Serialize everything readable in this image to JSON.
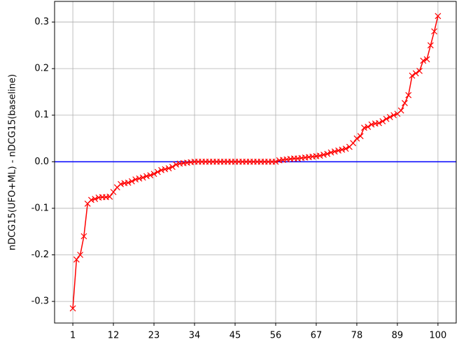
{
  "chart_data": {
    "type": "line",
    "y_label": "nDCG15(UFO+ML) - nDCG15(baseline)",
    "x": [
      1,
      2,
      3,
      4,
      5,
      6,
      7,
      8,
      9,
      10,
      11,
      12,
      13,
      14,
      15,
      16,
      17,
      18,
      19,
      20,
      21,
      22,
      23,
      24,
      25,
      26,
      27,
      28,
      29,
      30,
      31,
      32,
      33,
      34,
      35,
      36,
      37,
      38,
      39,
      40,
      41,
      42,
      43,
      44,
      45,
      46,
      47,
      48,
      49,
      50,
      51,
      52,
      53,
      54,
      55,
      56,
      57,
      58,
      59,
      60,
      61,
      62,
      63,
      64,
      65,
      66,
      67,
      68,
      69,
      70,
      71,
      72,
      73,
      74,
      75,
      76,
      77,
      78,
      79,
      80,
      81,
      82,
      83,
      84,
      85,
      86,
      87,
      88,
      89,
      90,
      91,
      92,
      93,
      94,
      95,
      96,
      97,
      98,
      99,
      100
    ],
    "series": [
      {
        "color": "#ff0000",
        "marker": "x",
        "values": [
          -0.315,
          -0.21,
          -0.2,
          -0.16,
          -0.09,
          -0.082,
          -0.08,
          -0.077,
          -0.076,
          -0.076,
          -0.075,
          -0.065,
          -0.055,
          -0.048,
          -0.046,
          -0.045,
          -0.042,
          -0.038,
          -0.036,
          -0.034,
          -0.031,
          -0.029,
          -0.026,
          -0.022,
          -0.018,
          -0.016,
          -0.014,
          -0.011,
          -0.006,
          -0.004,
          -0.003,
          -0.002,
          -0.001,
          0,
          0,
          0,
          0,
          0,
          0,
          0,
          0,
          0,
          0,
          0,
          0,
          0,
          0,
          0,
          0,
          0,
          0,
          0,
          0,
          0,
          0,
          0,
          0.003,
          0.004,
          0.005,
          0.006,
          0.007,
          0.007,
          0.008,
          0.009,
          0.01,
          0.011,
          0.012,
          0.013,
          0.015,
          0.017,
          0.02,
          0.022,
          0.024,
          0.026,
          0.028,
          0.032,
          0.04,
          0.05,
          0.055,
          0.073,
          0.075,
          0.08,
          0.082,
          0.083,
          0.087,
          0.092,
          0.096,
          0.1,
          0.103,
          0.11,
          0.126,
          0.143,
          0.185,
          0.19,
          0.195,
          0.217,
          0.22,
          0.25,
          0.28,
          0.313
        ]
      }
    ],
    "hline": {
      "y": 0,
      "color": "#0000ff"
    },
    "xlim": [
      -3.95,
      104.95
    ],
    "xticks": [
      1,
      12,
      23,
      34,
      45,
      56,
      67,
      78,
      89,
      100
    ],
    "ylim": [
      -0.3464,
      0.3444
    ],
    "yticks": [
      -0.3,
      -0.2,
      -0.1,
      0.0,
      0.1,
      0.2,
      0.3
    ],
    "grid": true
  }
}
